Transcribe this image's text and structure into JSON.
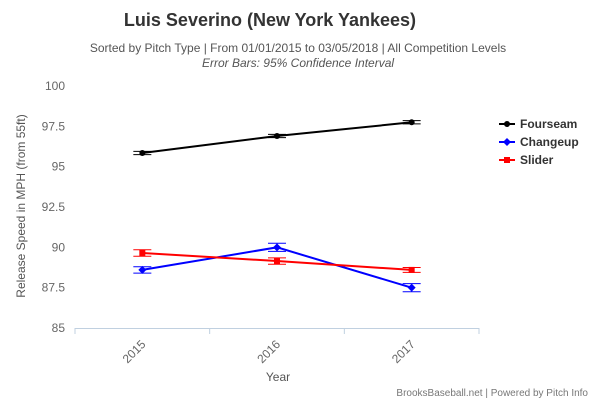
{
  "chart_data": {
    "type": "line",
    "title": "Luis Severino (New York Yankees)",
    "subtitle": "Sorted by Pitch Type | From 01/01/2015 to 03/05/2018 | All Competition Levels",
    "subtitle2": "Error Bars: 95% Confidence Interval",
    "xlabel": "Year",
    "ylabel": "Release Speed in MPH (from 55ft)",
    "categories": [
      "2015",
      "2016",
      "2017"
    ],
    "ylim": [
      85,
      100
    ],
    "yticks": [
      "85",
      "87.5",
      "90",
      "92.5",
      "95",
      "97.5",
      "100"
    ],
    "legend_position": "right",
    "grid": false,
    "credits": "BrooksBaseball.net | Powered by Pitch Info",
    "series": [
      {
        "name": "Fourseam",
        "color": "#000000",
        "marker": "circle",
        "values": [
          95.85,
          96.9,
          97.75
        ],
        "error_low": [
          95.75,
          96.8,
          97.65
        ],
        "error_high": [
          95.95,
          97.0,
          97.85
        ]
      },
      {
        "name": "Changeup",
        "color": "#0000ff",
        "marker": "diamond",
        "values": [
          88.6,
          90.0,
          87.5
        ],
        "error_low": [
          88.4,
          89.75,
          87.25
        ],
        "error_high": [
          88.8,
          90.25,
          87.75
        ]
      },
      {
        "name": "Slider",
        "color": "#ff0000",
        "marker": "square",
        "values": [
          89.65,
          89.15,
          88.6
        ],
        "error_low": [
          89.45,
          88.95,
          88.45
        ],
        "error_high": [
          89.85,
          89.35,
          88.75
        ]
      }
    ]
  }
}
